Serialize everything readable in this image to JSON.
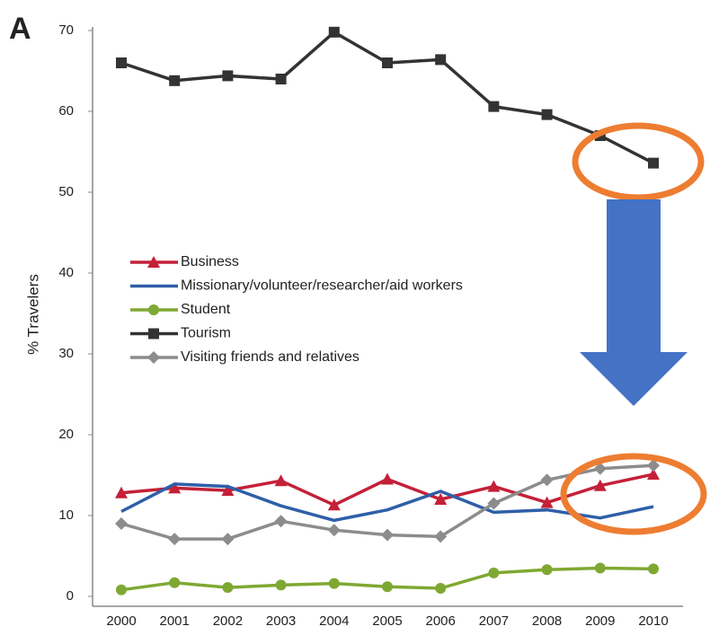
{
  "chart_data": {
    "type": "line",
    "panel_label": "A",
    "ylabel": "% Travelers",
    "categories": [
      "2000",
      "2001",
      "2002",
      "2003",
      "2004",
      "2005",
      "2006",
      "2007",
      "2008",
      "2009",
      "2010"
    ],
    "ylim": [
      0,
      70
    ],
    "yticks": [
      0,
      10,
      20,
      30,
      40,
      50,
      60,
      70
    ],
    "series": [
      {
        "name": "Business",
        "color": "#c42038",
        "marker": "triangle",
        "values": [
          12.8,
          13.4,
          13.1,
          14.3,
          11.3,
          14.5,
          12.0,
          13.6,
          11.6,
          13.7,
          15.1
        ]
      },
      {
        "name": "Missionary/volunteer/researcher/aid workers",
        "color": "#2e5fa8",
        "marker": "none",
        "values": [
          10.5,
          13.9,
          13.6,
          11.2,
          9.4,
          10.7,
          13.0,
          10.4,
          10.7,
          9.7,
          11.1
        ]
      },
      {
        "name": "Student",
        "color": "#7fa832",
        "marker": "circle",
        "values": [
          0.8,
          1.7,
          1.1,
          1.4,
          1.6,
          1.2,
          1.0,
          2.9,
          3.3,
          3.5,
          3.4
        ]
      },
      {
        "name": "Tourism",
        "color": "#333333",
        "marker": "square",
        "values": [
          66.0,
          63.8,
          64.4,
          64.0,
          69.8,
          66.0,
          66.4,
          60.6,
          59.6,
          57.0,
          53.6
        ]
      },
      {
        "name": "Visiting friends and relatives",
        "color": "#8c8c8c",
        "marker": "diamond",
        "values": [
          9.0,
          7.1,
          7.1,
          9.3,
          8.2,
          7.6,
          7.4,
          11.5,
          14.4,
          15.8,
          16.2
        ]
      }
    ]
  }
}
